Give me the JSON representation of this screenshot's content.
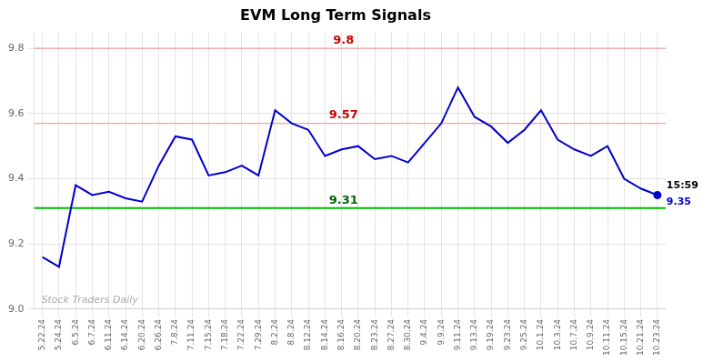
{
  "chart_data": {
    "type": "line",
    "title": "EVM Long Term Signals",
    "categories": [
      "5.22.24",
      "5.24.24",
      "6.5.24",
      "6.7.24",
      "6.11.24",
      "6.14.24",
      "6.20.24",
      "6.26.24",
      "7.8.24",
      "7.11.24",
      "7.15.24",
      "7.18.24",
      "7.22.24",
      "7.29.24",
      "8.2.24",
      "8.8.24",
      "8.12.24",
      "8.14.24",
      "8.16.24",
      "8.20.24",
      "8.23.24",
      "8.27.24",
      "8.30.24",
      "9.4.24",
      "9.9.24",
      "9.11.24",
      "9.13.24",
      "9.19.24",
      "9.23.24",
      "9.25.24",
      "10.1.24",
      "10.3.24",
      "10.7.24",
      "10.9.24",
      "10.11.24",
      "10.15.24",
      "10.21.24",
      "10.23.24"
    ],
    "values": [
      9.16,
      9.13,
      9.38,
      9.35,
      9.36,
      9.34,
      9.33,
      9.44,
      9.53,
      9.52,
      9.41,
      9.42,
      9.44,
      9.41,
      9.61,
      9.57,
      9.55,
      9.47,
      9.49,
      9.5,
      9.46,
      9.47,
      9.45,
      9.51,
      9.57,
      9.68,
      9.59,
      9.56,
      9.51,
      9.55,
      9.61,
      9.52,
      9.49,
      9.47,
      9.5,
      9.4,
      9.37,
      9.35
    ],
    "color": "#0000cc",
    "marker": "circle",
    "ylim": [
      9.0,
      9.85
    ],
    "yticks": [
      {
        "value": 9.0,
        "label": "9.0"
      },
      9.2,
      9.4,
      9.6,
      9.8
    ],
    "grid": true,
    "reference_lines": [
      {
        "value": 9.8,
        "label": "9.8",
        "color": "#f5a0a0",
        "label_color": "#cc0000"
      },
      {
        "value": 9.57,
        "label": "9.57",
        "color": "#f5a0a0",
        "label_color": "#cc0000"
      },
      {
        "value": 9.31,
        "label": "9.31",
        "color": "#00bb00",
        "label_color": "#006600"
      }
    ],
    "end_labels": {
      "time": "15:59",
      "value": "9.35"
    },
    "watermark": "Stock Traders Daily",
    "watermark_color": "#aaaaaa"
  }
}
